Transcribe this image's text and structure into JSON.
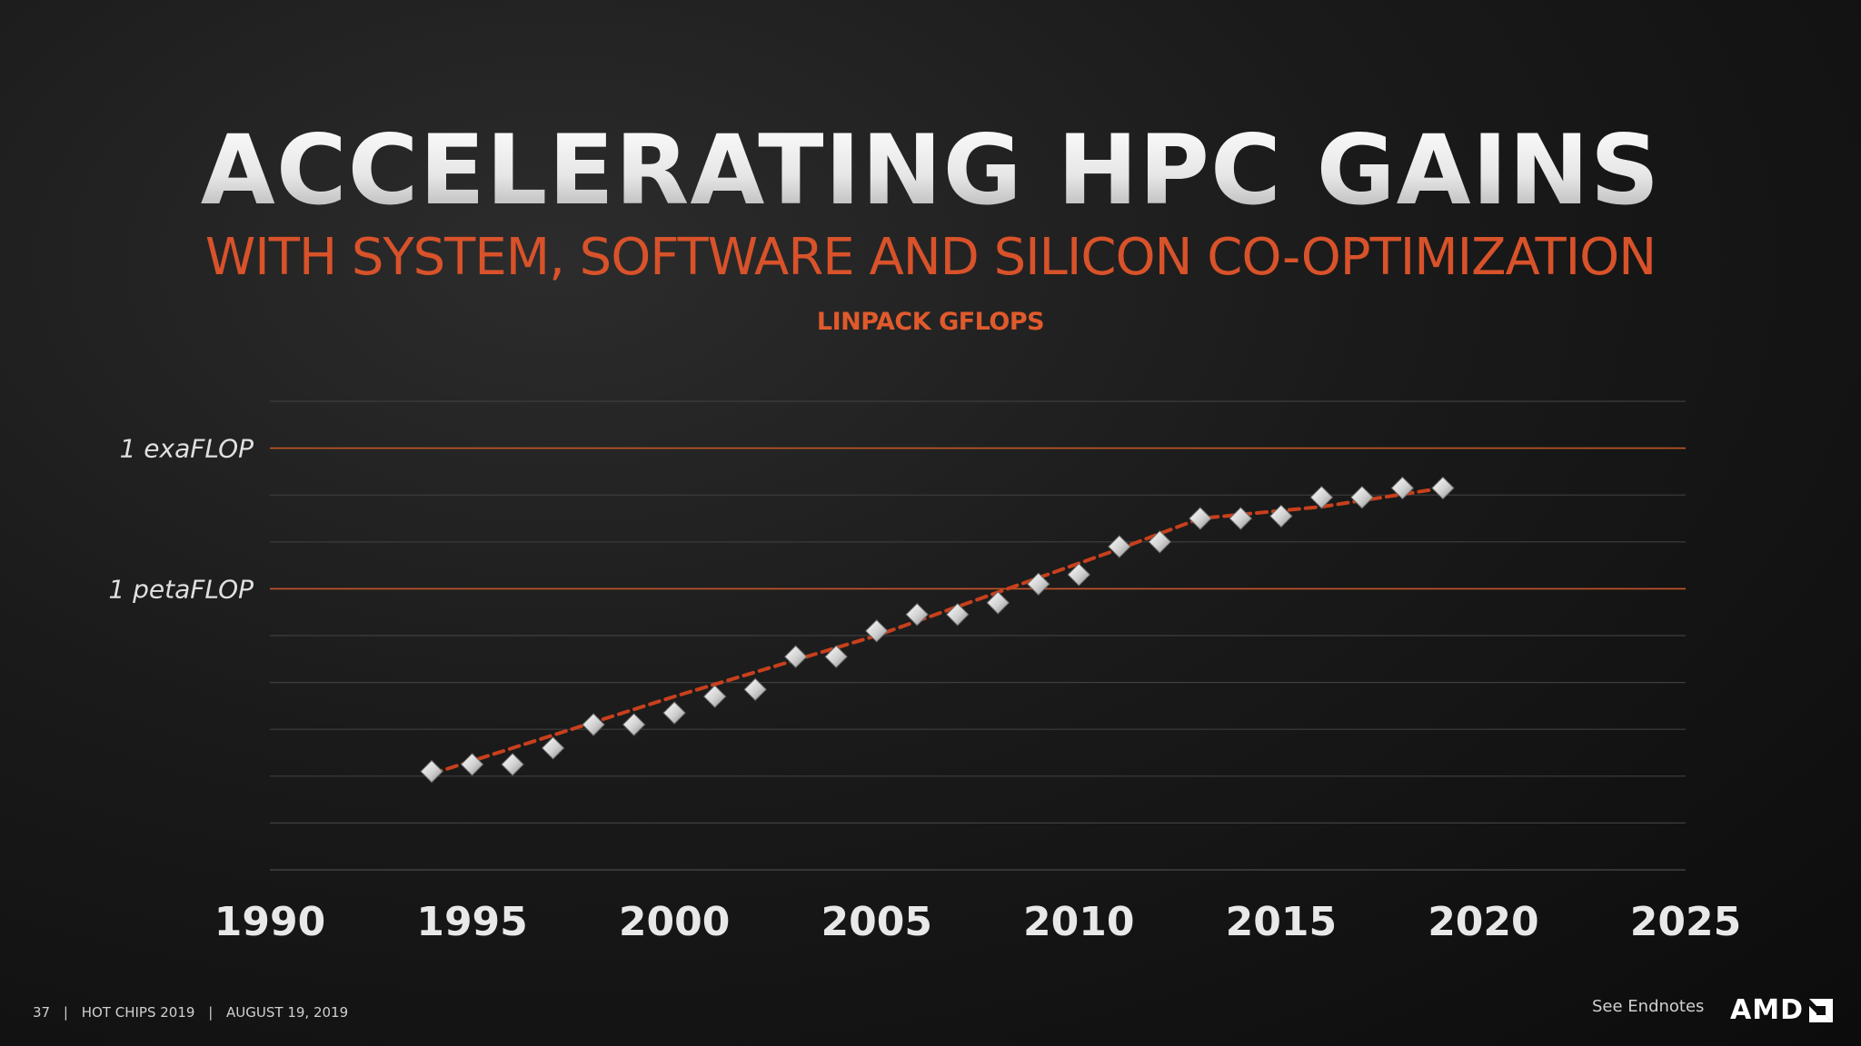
{
  "slide": {
    "title": "ACCELERATING HPC GAINS",
    "subtitle": "WITH SYSTEM, SOFTWARE AND SILICON CO-OPTIMIZATION",
    "chart_label": "LINPACK GFLOPS"
  },
  "footer": {
    "page": "37",
    "event": "HOT CHIPS 2019",
    "date": "AUGUST 19, 2019",
    "endnotes": "See Endnotes",
    "logo": "AMD"
  },
  "colors": {
    "accent": "#d8522a",
    "trend": "#c8401c",
    "ref_line": "#c2562a",
    "grid": "#3e3e3e",
    "marker": "#d9d9d9"
  },
  "chart_data": {
    "type": "scatter",
    "title": "LINPACK GFLOPS",
    "xlabel": "",
    "ylabel": "",
    "xlim": [
      1990,
      2025
    ],
    "ylim": [
      0,
      10
    ],
    "y_units": "log10 of GFLOPS",
    "xticks": [
      1990,
      1995,
      2000,
      2005,
      2010,
      2015,
      2020,
      2025
    ],
    "grid": true,
    "reference_lines": [
      {
        "label": "1 exaFLOP",
        "y": 9
      },
      {
        "label": "1 petaFLOP",
        "y": 6
      }
    ],
    "series": [
      {
        "name": "LINPACK GFLOPS",
        "marker": "diamond",
        "x": [
          1994,
          1995,
          1996,
          1997,
          1998,
          1999,
          2000,
          2001,
          2002,
          2003,
          2004,
          2005,
          2006,
          2007,
          2008,
          2009,
          2010,
          2011,
          2012,
          2013,
          2014,
          2015,
          2016,
          2017,
          2018,
          2019
        ],
        "y": [
          2.1,
          2.25,
          2.25,
          2.6,
          3.1,
          3.1,
          3.35,
          3.7,
          3.85,
          4.55,
          4.55,
          5.1,
          5.45,
          5.45,
          5.7,
          6.1,
          6.3,
          6.9,
          7.0,
          7.5,
          7.5,
          7.55,
          7.95,
          7.95,
          8.15,
          8.15
        ]
      },
      {
        "name": "trend",
        "style": "dashed",
        "x": [
          1994,
          2000,
          2005,
          2011,
          2013,
          2016,
          2019
        ],
        "y": [
          2.05,
          3.7,
          5.0,
          6.85,
          7.5,
          7.75,
          8.15
        ]
      }
    ]
  }
}
